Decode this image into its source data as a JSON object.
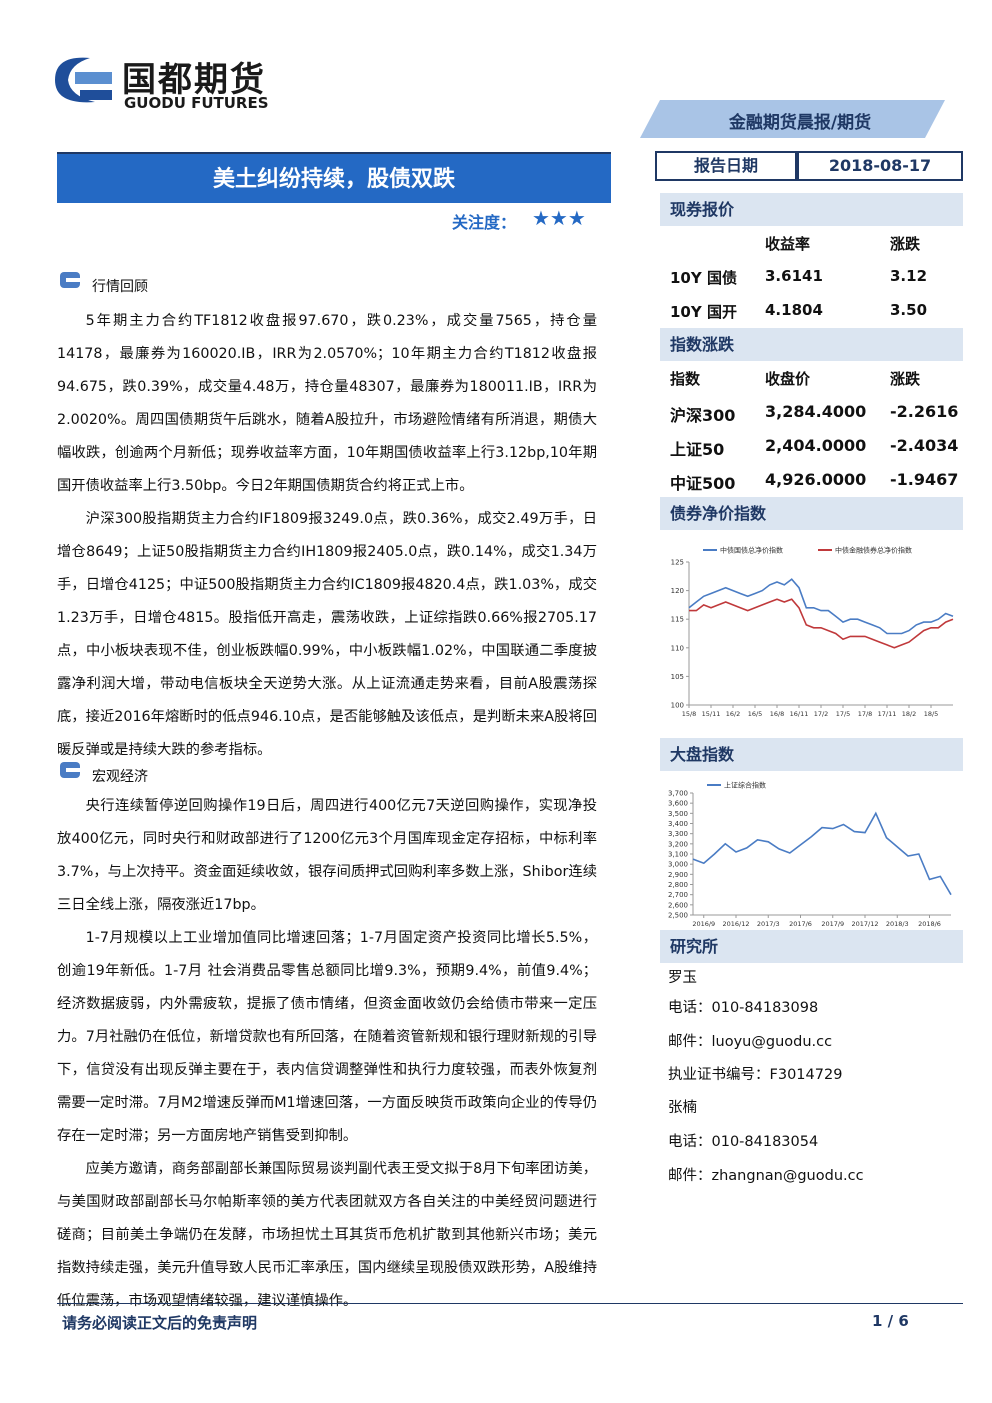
{
  "header": {
    "logo_cn": "国都期货",
    "logo_en": "GUODU FUTURES",
    "category": "金融期货晨报/期货"
  },
  "title": "美土纠纷持续，股债双跌",
  "attention_label": "关注度：",
  "stars": "★★★",
  "report_date": {
    "label": "报告日期",
    "value": "2018-08-17"
  },
  "sections": [
    {
      "heading": "行情回顾",
      "paragraphs": [
        "5年期主力合约TF1812收盘报97.670，跌0.23%，成交量7565，持仓量14178，最廉券为160020.IB，IRR为2.0570%；10年期主力合约T1812收盘报94.675，跌0.39%，成交量4.48万，持仓量48307，最廉券为180011.IB，IRR为2.0020%。周四国债期货午后跳水，随着A股拉升，市场避险情绪有所消退，期债大幅收跌，创逾两个月新低；现券收益率方面，10年期国债收益率上行3.12bp,10年期国开债收益率上行3.50bp。今日2年期国债期货合约将正式上市。",
        "沪深300股指期货主力合约IF1809报3249.0点，跌0.36%，成交2.49万手，日增仓8649；上证50股指期货主力合约IH1809报2405.0点，跌0.14%，成交1.34万手，日增仓4125；中证500股指期货主力合约IC1809报4820.4点，跌1.03%，成交1.23万手，日增仓4815。股指低开高走，震荡收跌，上证综指跌0.66%报2705.17点，中小板块表现不佳，创业板跌幅0.99%，中小板跌幅1.02%，中国联通二季度披露净利润大增，带动电信板块全天逆势大涨。从上证流通走势来看，目前A股震荡探底，接近2016年熔断时的低点946.10点，是否能够触及该低点，是判断未来A股将回暖反弹或是持续大跌的参考指标。"
      ]
    },
    {
      "heading": "宏观经济",
      "paragraphs": [
        "央行连续暂停逆回购操作19日后，周四进行400亿元7天逆回购操作，实现净投放400亿元，同时央行和财政部进行了1200亿元3个月国库现金定存招标，中标利率3.7%，与上次持平。资金面延续收敛，银存间质押式回购利率多数上涨，Shibor连续三日全线上涨，隔夜涨近17bp。",
        "1-7月规模以上工业增加值同比增速回落；1-7月固定资产投资同比增长5.5%，创逾19年新低。1-7月 社会消费品零售总额同比增9.3%，预期9.4%，前值9.4%；经济数据疲弱，内外需疲软，提振了债市情绪，但资金面收敛仍会给债市带来一定压力。7月社融仍在低位，新增贷款也有所回落，在随着资管新规和银行理财新规的引导下，信贷没有出现反弹主要在于，表内信贷调整弹性和执行力度较强，而表外恢复剂需要一定时滞。7月M2增速反弹而M1增速回落，一方面反映货币政策向企业的传导仍存在一定时滞；另一方面房地产销售受到抑制。",
        "应美方邀请，商务部副部长兼国际贸易谈判副代表王受文拟于8月下旬率团访美，与美国财政部副部长马尔帕斯率领的美方代表团就双方各自关注的中美经贸问题进行磋商；目前美土争端仍在发酵，市场担忧土耳其货币危机扩散到其他新兴市场；美元指数持续走强，美元升值导致人民币汇率承压，国内继续呈现股债双跌形势，A股维持低位震荡，市场观望情绪较强，建议谨慎操作。"
      ]
    }
  ],
  "side": {
    "spot": {
      "heading": "现券报价",
      "columns": [
        "收益率",
        "涨跌"
      ],
      "rows": [
        [
          "10Y 国债",
          "3.6141",
          "3.12"
        ],
        [
          "10Y 国开",
          "4.1804",
          "3.50"
        ]
      ]
    },
    "index": {
      "heading": "指数涨跌",
      "columns": [
        "指数",
        "收盘价",
        "涨跌"
      ],
      "rows": [
        [
          "沪深300",
          "3,284.4000",
          "-2.2616"
        ],
        [
          "上证50",
          "2,404.0000",
          "-2.4034"
        ],
        [
          "中证500",
          "4,926.0000",
          "-1.9467"
        ]
      ]
    },
    "bond_chart_heading": "债券净价指数",
    "market_chart_heading": "大盘指数",
    "research": {
      "heading": "研究所",
      "lines": [
        "罗玉",
        "电话：010-84183098",
        "邮件：luoyu@guodu.cc",
        "执业证书编号：F3014729",
        "张楠",
        "电话：010-84183054",
        "邮件：zhangnan@guodu.cc"
      ]
    }
  },
  "charts": [
    {
      "type": "line",
      "categories": [
        "15/8",
        null,
        null,
        "15/11",
        null,
        null,
        "16/2",
        null,
        null,
        "16/5",
        null,
        null,
        "16/8",
        null,
        null,
        "16/11",
        null,
        null,
        "17/2",
        null,
        null,
        "17/5",
        null,
        null,
        "17/8",
        null,
        null,
        "17/11",
        null,
        null,
        "18/2",
        null,
        null,
        "18/5",
        null,
        null,
        null
      ],
      "ylim": [
        100,
        125
      ],
      "yticks": [
        100,
        105,
        110,
        115,
        120,
        125
      ],
      "series": [
        {
          "name": "中债国债总净价指数",
          "color": "#4a7cc4",
          "values": [
            117,
            118,
            119,
            119.5,
            120,
            120.5,
            120,
            119.5,
            119,
            119.5,
            120,
            121,
            121.5,
            121,
            122,
            120.5,
            117,
            117,
            116.5,
            116.5,
            115.5,
            114.5,
            115,
            115,
            114.5,
            114,
            113.5,
            112.5,
            112.5,
            112.5,
            113,
            114,
            114.5,
            114.5,
            115,
            116,
            115.5
          ]
        },
        {
          "name": "中债金融债券总净价指数",
          "color": "#c0393b",
          "values": [
            116.5,
            116.5,
            117.5,
            117,
            117.5,
            118,
            117.5,
            117,
            116.5,
            117,
            117.5,
            118,
            118.5,
            118,
            118.5,
            117,
            114,
            113.5,
            113.5,
            113,
            112.5,
            111.5,
            112,
            112,
            112,
            111.5,
            111,
            110.5,
            110,
            110.5,
            111,
            112,
            113,
            113.5,
            113.5,
            114.5,
            115
          ]
        }
      ]
    },
    {
      "type": "line",
      "categories": [
        null,
        "2016/9",
        null,
        null,
        "2016/12",
        null,
        null,
        "2017/3",
        null,
        null,
        "2017/6",
        null,
        null,
        "2017/9",
        null,
        null,
        "2017/12",
        null,
        null,
        "2018/3",
        null,
        null,
        "2018/6",
        null,
        null
      ],
      "ylim": [
        2500,
        3700
      ],
      "yticks": [
        {
          "value": 2500,
          "label": "2,500"
        },
        {
          "value": 2600,
          "label": "2,600"
        },
        {
          "value": 2700,
          "label": "2,700"
        },
        {
          "value": 2800,
          "label": "2,800"
        },
        {
          "value": 2900,
          "label": "2,900"
        },
        {
          "value": 3000,
          "label": "3,000"
        },
        {
          "value": 3100,
          "label": "3,100"
        },
        {
          "value": 3200,
          "label": "3,200"
        },
        {
          "value": 3300,
          "label": "3,300"
        },
        {
          "value": 3400,
          "label": "3,400"
        },
        {
          "value": 3500,
          "label": "3,500"
        },
        {
          "value": 3600,
          "label": "3,600"
        },
        {
          "value": 3700,
          "label": "3,700"
        }
      ],
      "series": [
        {
          "name": "上证综合指数",
          "color": "#4a7cc4",
          "values": [
            3050,
            3010,
            3100,
            3200,
            3120,
            3160,
            3240,
            3220,
            3150,
            3110,
            3190,
            3270,
            3360,
            3350,
            3390,
            3320,
            3310,
            3500,
            3260,
            3170,
            3080,
            3100,
            2850,
            2880,
            2700
          ]
        }
      ]
    }
  ],
  "footer": {
    "disclaimer": "请务必阅读正文后的免责声明",
    "page": "1 / 6"
  }
}
